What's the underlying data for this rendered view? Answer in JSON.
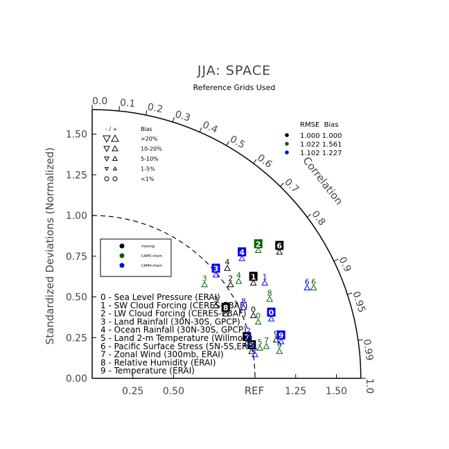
{
  "chart_data": {
    "type": "scatter",
    "title": "JJA: SPACE",
    "subtitle": "Reference Grids Used",
    "ylabel": "Standardized Deviations (Normalized)",
    "arc_label": "Correlation",
    "ref_label": "REF",
    "std_max": 1.65,
    "x_ticks": [
      {
        "value": 0.25,
        "label": "0.25"
      },
      {
        "value": 0.5,
        "label": "0.50"
      },
      {
        "value": 1.25,
        "label": "1.25"
      },
      {
        "value": 1.5,
        "label": "1.50"
      }
    ],
    "y_ticks": [
      {
        "value": 0.0,
        "label": "0.00"
      },
      {
        "value": 0.25,
        "label": "0.25"
      },
      {
        "value": 0.5,
        "label": "0.50"
      },
      {
        "value": 0.75,
        "label": "0.75"
      },
      {
        "value": 1.0,
        "label": "1.00"
      },
      {
        "value": 1.25,
        "label": "1.25"
      },
      {
        "value": 1.5,
        "label": "1.50"
      }
    ],
    "corr_ticks": [
      {
        "value": 0.0,
        "label": "0.0"
      },
      {
        "value": 0.1,
        "label": "0.1"
      },
      {
        "value": 0.2,
        "label": "0.2"
      },
      {
        "value": 0.3,
        "label": "0.3"
      },
      {
        "value": 0.4,
        "label": "0.4"
      },
      {
        "value": 0.5,
        "label": "0.5"
      },
      {
        "value": 0.6,
        "label": "0.6"
      },
      {
        "value": 0.7,
        "label": "0.7"
      },
      {
        "value": 0.8,
        "label": "0.8"
      },
      {
        "value": 0.9,
        "label": "0.9"
      },
      {
        "value": 0.95,
        "label": "0.95"
      },
      {
        "value": 0.99,
        "label": "0.99"
      },
      {
        "value": 1.0,
        "label": "1.0"
      }
    ],
    "bias_legend": {
      "header": [
        "- / +",
        "Bias"
      ],
      "rows": [
        ">20%",
        "10-20%",
        "5-10%",
        "1-5%",
        "<1%"
      ]
    },
    "rmse_legend": {
      "header": "RMSE  Bias",
      "rows": [
        {
          "text": "1.000 1.000",
          "color": "#000000"
        },
        {
          "text": "1.022 1.561",
          "color": "#006400"
        },
        {
          "text": "1.102 1.227",
          "color": "#0000ff"
        }
      ]
    },
    "case_legend": [
      {
        "name": "missing",
        "color": "#000000"
      },
      {
        "name": "CAM5-chem",
        "color": "#006400"
      },
      {
        "name": "CAM4-chem",
        "color": "#0000ff"
      }
    ],
    "variables": [
      "0 - Sea Level Pressure (ERAI)",
      "1 - SW Cloud Forcing (CERES-EBAF)",
      "2 - LW Cloud Forcing (CERES-EBAF)",
      "3 - Land Rainfall (30N-30S, GPCP)",
      "4 - Ocean Rainfall (30N-30S, GPCP)",
      "5 - Land 2-m Temperature (Willmott)",
      "6 - Pacific Surface Stress (5N-5S,ERS)",
      "7 - Zonal Wind (300mb, ERAI)",
      "8 - Relative Humidity (ERAI)",
      "9 - Temperature (ERAI)"
    ],
    "labeled_points": [
      {
        "label": "0",
        "model": "missing",
        "x": 0.99,
        "y": 0.42,
        "boxed": false
      },
      {
        "label": "1",
        "model": "missing",
        "x": 0.99,
        "y": 0.62,
        "boxed": true
      },
      {
        "label": "2",
        "model": "missing",
        "x": 0.85,
        "y": 0.61,
        "boxed": false
      },
      {
        "label": "3",
        "model": "missing",
        "x": 0.76,
        "y": 0.48,
        "boxed": false
      },
      {
        "label": "4",
        "model": "missing",
        "x": 0.83,
        "y": 0.71,
        "boxed": false
      },
      {
        "label": "5",
        "model": "missing",
        "x": 0.98,
        "y": 0.2,
        "boxed": true
      },
      {
        "label": "6",
        "model": "missing",
        "x": 1.15,
        "y": 0.81,
        "boxed": true
      },
      {
        "label": "7",
        "model": "missing",
        "x": 0.95,
        "y": 0.25,
        "boxed": true
      },
      {
        "label": "8",
        "model": "missing",
        "x": 0.82,
        "y": 0.43,
        "boxed": true
      },
      {
        "label": "9",
        "model": "missing",
        "x": 1.13,
        "y": 0.27,
        "boxed": false
      },
      {
        "label": "0",
        "model": "CAM5-chem",
        "x": 1.02,
        "y": 0.38,
        "boxed": false
      },
      {
        "label": "1",
        "model": "CAM5-chem",
        "x": 0.97,
        "y": 0.25,
        "boxed": false
      },
      {
        "label": "2",
        "model": "CAM5-chem",
        "x": 1.02,
        "y": 0.82,
        "boxed": true
      },
      {
        "label": "3",
        "model": "CAM5-chem",
        "x": 0.69,
        "y": 0.61,
        "boxed": false
      },
      {
        "label": "4",
        "model": "CAM5-chem",
        "x": 0.9,
        "y": 0.63,
        "boxed": false
      },
      {
        "label": "5",
        "model": "CAM5-chem",
        "x": 1.03,
        "y": 0.22,
        "boxed": false
      },
      {
        "label": "6",
        "model": "CAM5-chem",
        "x": 1.36,
        "y": 0.59,
        "boxed": false
      },
      {
        "label": "7",
        "model": "CAM5-chem",
        "x": 1.07,
        "y": 0.23,
        "boxed": false
      },
      {
        "label": "8",
        "model": "CAM5-chem",
        "x": 1.09,
        "y": 0.52,
        "boxed": false
      },
      {
        "label": "9",
        "model": "CAM5-chem",
        "x": 1.15,
        "y": 0.2,
        "boxed": false
      },
      {
        "label": "0",
        "model": "CAM4-chem",
        "x": 1.1,
        "y": 0.4,
        "boxed": true
      },
      {
        "label": "1",
        "model": "CAM4-chem",
        "x": 1.06,
        "y": 0.62,
        "boxed": false
      },
      {
        "label": "2",
        "model": "CAM4-chem",
        "x": 0.96,
        "y": 0.29,
        "boxed": false
      },
      {
        "label": "3",
        "model": "CAM4-chem",
        "x": 0.76,
        "y": 0.67,
        "boxed": true
      },
      {
        "label": "4",
        "model": "CAM4-chem",
        "x": 0.92,
        "y": 0.77,
        "boxed": true
      },
      {
        "label": "5",
        "model": "CAM4-chem",
        "x": 1.0,
        "y": 0.18,
        "boxed": false
      },
      {
        "label": "6",
        "model": "CAM4-chem",
        "x": 1.32,
        "y": 0.59,
        "boxed": false
      },
      {
        "label": "7",
        "model": "CAM4-chem",
        "x": 0.97,
        "y": 0.24,
        "boxed": false
      },
      {
        "label": "8",
        "model": "CAM4-chem",
        "x": 0.93,
        "y": 0.47,
        "boxed": false
      },
      {
        "label": "9",
        "model": "CAM4-chem",
        "x": 1.16,
        "y": 0.26,
        "boxed": true
      }
    ]
  }
}
